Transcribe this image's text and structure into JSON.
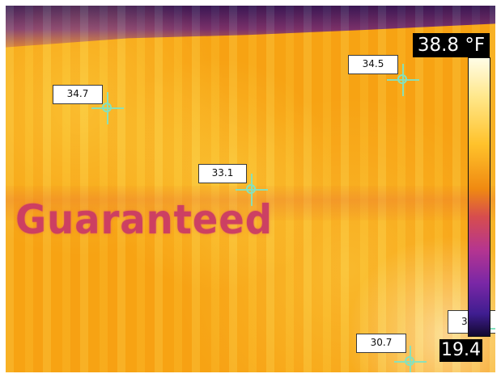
{
  "image": {
    "colors": {
      "base": "#f7a515",
      "cold_top": "#23085c",
      "warm_highlight": "#ffe45a",
      "text_overlay": "#c73667",
      "label_bg": "#ffffff",
      "scale_bg": "#000000",
      "crosshair": "#84e2be"
    },
    "visible_text": {
      "guaranteed": "Guaranteed"
    }
  },
  "measurements": {
    "spot_1": "34.7",
    "spot_2": "33.1",
    "spot_3": "34.5",
    "spot_4": "30.7",
    "partial_spot_visible": "3"
  },
  "scale": {
    "top": "38.8 °F",
    "bottom": "19.4"
  },
  "icons": {
    "crosshair": "crosshair-icon"
  }
}
